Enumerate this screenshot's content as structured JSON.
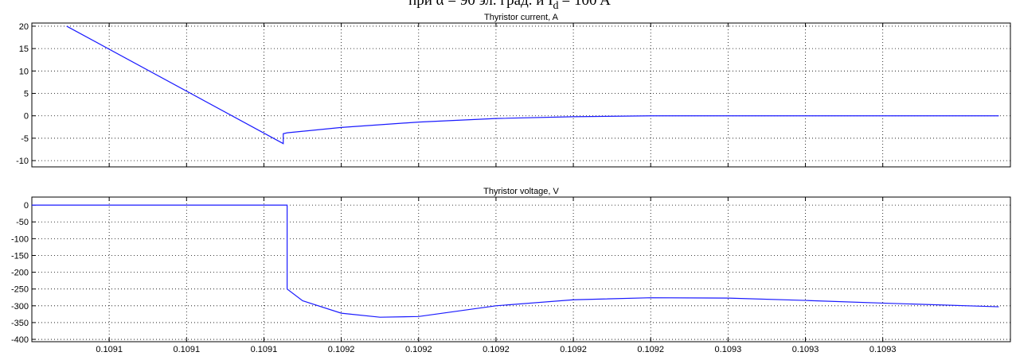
{
  "header": {
    "text": "при α = 90 эл. град. и I",
    "sub": "d",
    "tail": "= 100 A"
  },
  "chart_data": [
    {
      "type": "line",
      "title": "Thyristor current, A",
      "grid": true,
      "xlim": [
        0.10908,
        0.109333
      ],
      "ylim": [
        -11.4,
        20.7
      ],
      "xticks": [
        0.1091,
        0.10912,
        0.10914,
        0.10916,
        0.10918,
        0.1092,
        0.10922,
        0.10924,
        0.10926,
        0.10928,
        0.1093
      ],
      "yticks": [
        20,
        15,
        10,
        5,
        0,
        -5,
        -10
      ],
      "series": [
        {
          "color": "#1a1aff",
          "x": [
            0.109089,
            0.109145,
            0.109145,
            0.109146,
            0.10916,
            0.10918,
            0.1092,
            0.10922,
            0.10924,
            0.10933
          ],
          "values": [
            20,
            -6.2,
            -4,
            -3.8,
            -2.6,
            -1.4,
            -0.6,
            -0.2,
            0,
            0
          ]
        }
      ]
    },
    {
      "type": "line",
      "title": "Thyristor voltage, V",
      "grid": true,
      "xlim": [
        0.10908,
        0.109333
      ],
      "ylim": [
        -407,
        24
      ],
      "xticks": [
        {
          "value": 0.1091,
          "label": "0.1091"
        },
        {
          "value": 0.10912,
          "label": "0.1091"
        },
        {
          "value": 0.10914,
          "label": "0.1091"
        },
        {
          "value": 0.10916,
          "label": "0.1092"
        },
        {
          "value": 0.10918,
          "label": "0.1092"
        },
        {
          "value": 0.1092,
          "label": "0.1092"
        },
        {
          "value": 0.10922,
          "label": "0.1092"
        },
        {
          "value": 0.10924,
          "label": "0.1092"
        },
        {
          "value": 0.10926,
          "label": "0.1093"
        },
        {
          "value": 0.10928,
          "label": "0.1093"
        },
        {
          "value": 0.1093,
          "label": "0.1093"
        }
      ],
      "yticks": [
        0,
        -50,
        -100,
        -150,
        -200,
        -250,
        -300,
        -350,
        -400
      ],
      "series": [
        {
          "color": "#1a1aff",
          "x": [
            0.10908,
            0.109146,
            0.109146,
            0.10915,
            0.10916,
            0.10917,
            0.10918,
            0.1092,
            0.10922,
            0.10924,
            0.10926,
            0.10928,
            0.1093,
            0.10933
          ],
          "values": [
            0,
            0,
            -250,
            -285,
            -322,
            -334,
            -332,
            -300,
            -282,
            -276,
            -277,
            -284,
            -292,
            -303
          ]
        }
      ]
    }
  ]
}
